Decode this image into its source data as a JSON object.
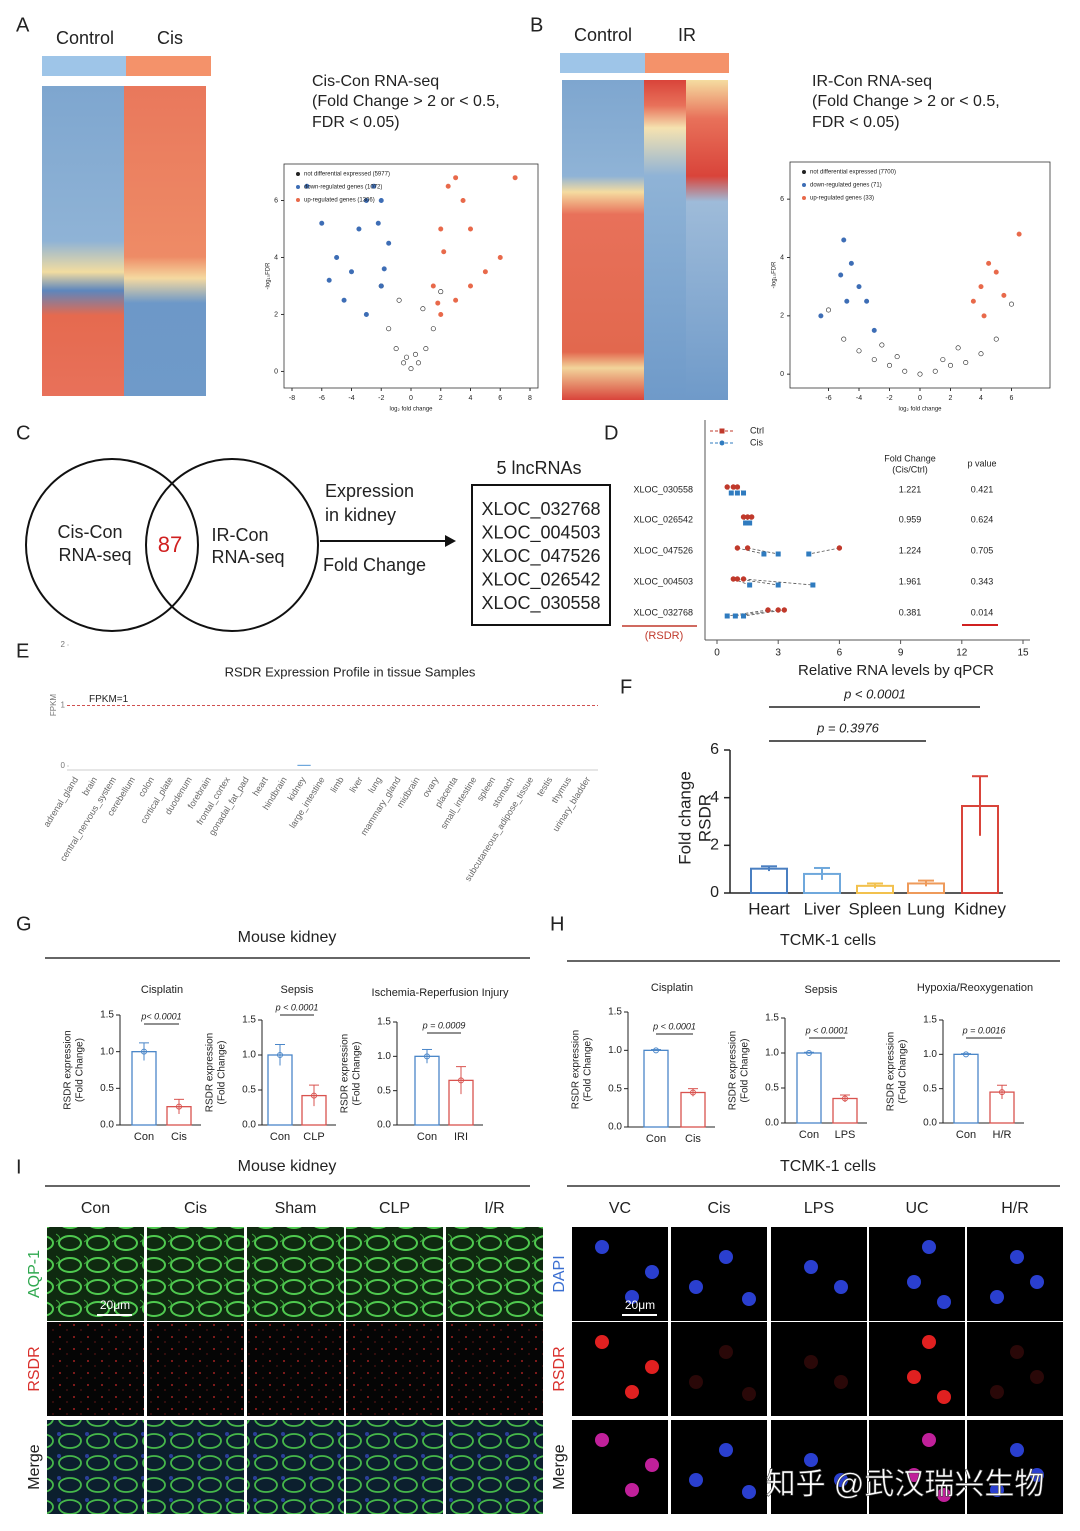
{
  "panel_labels": [
    "A",
    "B",
    "C",
    "D",
    "E",
    "F",
    "G",
    "H",
    "I"
  ],
  "A": {
    "groups": [
      "Control",
      "Cis"
    ],
    "title": "Cis-Con  RNA-seq",
    "criteria": [
      "(Fold Change > 2 or  < 0.5,",
      "FDR < 0.05)"
    ]
  },
  "B": {
    "groups": [
      "Control",
      "IR"
    ],
    "title": "IR-Con  RNA-seq",
    "criteria": [
      "(Fold Change > 2 or  < 0.5,",
      "FDR < 0.05)"
    ]
  },
  "C": {
    "left": [
      "Cis-Con",
      "RNA-seq"
    ],
    "overlap": "87",
    "right": [
      "IR-Con",
      "RNA-seq"
    ],
    "arrow_top": [
      "Expression",
      "in kidney"
    ],
    "arrow_bottom": "Fold Change",
    "box_title": "5 lncRNAs",
    "box_items": [
      "XLOC_032768",
      "XLOC_004503",
      "XLOC_047526",
      "XLOC_026542",
      "XLOC_030558"
    ]
  },
  "sections": {
    "G": "Mouse kidney",
    "H": "TCMK-1 cells"
  },
  "I": {
    "left": {
      "title": "Mouse kidney",
      "columns": [
        "Con",
        "Cis",
        "Sham",
        "CLP",
        "I/R"
      ],
      "rows": [
        "AQP-1",
        "RSDR",
        "Merge"
      ],
      "row_colors": [
        "#2fa84f",
        "#d9302c",
        "#222"
      ],
      "scale": "20μm"
    },
    "right": {
      "title": "TCMK-1 cells",
      "columns": [
        "VC",
        "Cis",
        "LPS",
        "UC",
        "H/R"
      ],
      "rows": [
        "DAPI",
        "RSDR",
        "Merge"
      ],
      "row_colors": [
        "#3b6fd1",
        "#d9302c",
        "#222"
      ],
      "scale": "20μm"
    }
  },
  "watermark": "知乎 @武汉瑞兴生物",
  "chart_data": [
    {
      "type": "scatter",
      "xlabel": "log₂ fold change",
      "ylabel": "-log₁₀FDR",
      "xlim": [
        -8,
        8
      ],
      "ylim": [
        -0.3,
        7
      ],
      "xticks": [
        -8,
        -6,
        -4,
        -2,
        0,
        2,
        4,
        6,
        8
      ],
      "yticks": [
        0,
        2,
        4,
        6
      ],
      "series": [
        {
          "name": "not differential expressed (5977)",
          "color": "#222222",
          "x": [
            -1.5,
            -1,
            -0.5,
            0,
            0.5,
            1,
            1.5,
            -0.8,
            0.8,
            -2,
            2,
            -0.3,
            0.3
          ],
          "y": [
            1.5,
            0.8,
            0.3,
            0.1,
            0.3,
            0.8,
            1.5,
            2.5,
            2.2,
            3,
            2.8,
            0.5,
            0.6
          ]
        },
        {
          "name": "down-regulated genes (1072)",
          "color": "#3d6db5",
          "x": [
            -7,
            -6,
            -5,
            -4,
            -3.5,
            -3,
            -2.5,
            -2,
            -1.5,
            -3,
            -2,
            -4.5,
            -5.5,
            -2.2,
            -1.8
          ],
          "y": [
            6.5,
            5.2,
            4,
            3.5,
            5,
            6,
            6.5,
            6,
            4.5,
            2,
            3,
            2.5,
            3.2,
            5.2,
            3.6
          ]
        },
        {
          "name": "up-regulated genes (1306)",
          "color": "#e8694a",
          "x": [
            1.5,
            2,
            2.5,
            3,
            3.5,
            4,
            5,
            6,
            7,
            2,
            3,
            4,
            2.2,
            1.8
          ],
          "y": [
            3,
            5,
            6.5,
            6.8,
            6,
            5,
            3.5,
            4,
            6.8,
            2,
            2.5,
            3,
            4.2,
            2.4
          ]
        }
      ]
    },
    {
      "type": "scatter",
      "xlabel": "log₂ fold change",
      "ylabel": "-log₁₀FDR",
      "xlim": [
        -8,
        8
      ],
      "ylim": [
        -0.2,
        7
      ],
      "xticks": [
        -6,
        -4,
        -2,
        0,
        2,
        4,
        6
      ],
      "yticks": [
        0,
        2,
        4,
        6
      ],
      "series": [
        {
          "name": "not differential expressed (7700)",
          "color": "#222222",
          "x": [
            -6,
            -5,
            -4,
            -3,
            -2,
            -1,
            0,
            1,
            2,
            3,
            4,
            5,
            6,
            -1.5,
            1.5,
            -2.5,
            2.5
          ],
          "y": [
            2.2,
            1.2,
            0.8,
            0.5,
            0.3,
            0.1,
            0,
            0.1,
            0.3,
            0.4,
            0.7,
            1.2,
            2.4,
            0.6,
            0.5,
            1,
            0.9
          ]
        },
        {
          "name": "down-regulated genes (71)",
          "color": "#3d6db5",
          "x": [
            -5,
            -4.5,
            -4,
            -3.5,
            -4.8,
            -5.2,
            -3,
            -6.5
          ],
          "y": [
            4.6,
            3.8,
            3,
            2.5,
            2.5,
            3.4,
            1.5,
            2
          ]
        },
        {
          "name": "up-regulated genes (33)",
          "color": "#e8694a",
          "x": [
            3.5,
            4,
            4.5,
            5,
            5.5,
            4.2,
            6.5
          ],
          "y": [
            2.5,
            3,
            3.8,
            3.5,
            2.7,
            2,
            4.8
          ]
        }
      ]
    },
    {
      "type": "dot",
      "header": [
        "Fold Change",
        "(Cis/Ctrl)"
      ],
      "p_header": "p value",
      "gene_label": "(RSDR)",
      "xlabel": "Relative RNA levels by qPCR",
      "xlim": [
        0,
        15
      ],
      "xticks": [
        0,
        3,
        6,
        9,
        12,
        15
      ],
      "rows": [
        "XLOC_030558",
        "XLOC_026542",
        "XLOC_047526",
        "XLOC_004503",
        "XLOC_032768"
      ],
      "fold_change": [
        1.221,
        0.959,
        1.224,
        1.961,
        0.381
      ],
      "p_value": [
        0.421,
        0.624,
        0.705,
        0.343,
        0.014
      ],
      "series": [
        {
          "name": "Ctrl",
          "color": "#c0392b",
          "values": [
            [
              0.5,
              0.8,
              1.0
            ],
            [
              1.3,
              1.5,
              1.7
            ],
            [
              1.0,
              1.5,
              6.0
            ],
            [
              0.8,
              1.0,
              1.3
            ],
            [
              2.5,
              3.0,
              3.3
            ]
          ]
        },
        {
          "name": "Cis",
          "color": "#2f7bbf",
          "values": [
            [
              0.7,
              1.0,
              1.3
            ],
            [
              1.4,
              1.5,
              1.6
            ],
            [
              2.3,
              3.0,
              4.5
            ],
            [
              1.6,
              3.0,
              4.7
            ],
            [
              0.5,
              0.9,
              1.3
            ]
          ]
        }
      ]
    },
    {
      "type": "bar",
      "title": "RSDR Expression Profile in tissue Samples",
      "ylabel": "FPKM",
      "threshold_label": "FPKM=1",
      "threshold": 1,
      "ylim": [
        0,
        2
      ],
      "yticks": [
        0,
        1,
        2
      ],
      "color": "#6fa8dc",
      "categories": [
        "adrenal_gland",
        "brain",
        "central_nervous_system",
        "cerebellum",
        "colon",
        "cortical_plate",
        "duodenum",
        "forebrain",
        "frontal_cortex",
        "gonadal_fat_pad",
        "heart",
        "hindbrain",
        "kidney",
        "large_intestine",
        "limb",
        "liver",
        "lung",
        "mammary_gland",
        "midbrain",
        "ovary",
        "placenta",
        "small_intestine",
        "spleen",
        "stomach",
        "subcutaneous_adipose_tissue",
        "testis",
        "thymus",
        "urinary_bladder"
      ],
      "values": [
        0,
        0,
        0,
        0,
        0,
        0,
        0,
        0,
        0,
        0,
        0,
        0,
        0.02,
        0,
        0,
        0,
        0,
        0,
        0,
        0,
        0,
        0,
        0,
        0,
        0,
        0,
        0,
        0
      ]
    },
    {
      "type": "bar",
      "ylabel": [
        "Fold change",
        "RSDR"
      ],
      "ylim": [
        0,
        6
      ],
      "yticks": [
        0,
        2,
        4,
        6
      ],
      "categories": [
        "Heart",
        "Liver",
        "Spleen",
        "Lung",
        "Kidney"
      ],
      "values": [
        1.02,
        0.8,
        0.3,
        0.4,
        3.65
      ],
      "errors": [
        0.1,
        0.25,
        0.1,
        0.12,
        1.25
      ],
      "colors": [
        "#4a7fc1",
        "#6fa8dc",
        "#f2c14e",
        "#ee9a5a",
        "#d9443a"
      ],
      "annotations": [
        "p < 0.0001",
        "p = 0.3976"
      ]
    },
    {
      "type": "bar",
      "title": "Cisplatin",
      "ylabel": [
        "RSDR expression",
        "(Fold Change)"
      ],
      "ylim": [
        0,
        1.5
      ],
      "yticks": [
        {
          "value": 0,
          "label": "0.0"
        },
        0.5,
        {
          "value": 1,
          "label": "1.0"
        },
        1.5
      ],
      "categories": [
        "Con",
        "Cis"
      ],
      "values": [
        1.0,
        0.25
      ],
      "errors": [
        0.12,
        0.1
      ],
      "colors": [
        "#4a86c8",
        "#d9534f"
      ],
      "annotation": "p< 0.0001"
    },
    {
      "type": "bar",
      "title": "Sepsis",
      "ylabel": [
        "RSDR expression",
        "(Fold Change)"
      ],
      "ylim": [
        0,
        1.5
      ],
      "yticks": [
        {
          "value": 0,
          "label": "0.0"
        },
        0.5,
        {
          "value": 1,
          "label": "1.0"
        },
        1.5
      ],
      "categories": [
        "Con",
        "CLP"
      ],
      "values": [
        1.0,
        0.42
      ],
      "errors": [
        0.15,
        0.15
      ],
      "colors": [
        "#4a86c8",
        "#d9534f"
      ],
      "annotation": "p < 0.0001"
    },
    {
      "type": "bar",
      "title": "Ischemia-Reperfusion Injury",
      "ylabel": [
        "RSDR expression",
        "(Fold Change)"
      ],
      "ylim": [
        0,
        1.5
      ],
      "yticks": [
        {
          "value": 0,
          "label": "0.0"
        },
        0.5,
        {
          "value": 1,
          "label": "1.0"
        },
        1.5
      ],
      "categories": [
        "Con",
        "IRI"
      ],
      "values": [
        1.0,
        0.65
      ],
      "errors": [
        0.1,
        0.2
      ],
      "colors": [
        "#4a86c8",
        "#d9534f"
      ],
      "annotation": "p = 0.0009"
    },
    {
      "type": "bar",
      "title": "Cisplatin",
      "ylabel": [
        "RSDR expression",
        "(Fold Change)"
      ],
      "ylim": [
        0,
        1.5
      ],
      "yticks": [
        {
          "value": 0,
          "label": "0.0"
        },
        0.5,
        {
          "value": 1,
          "label": "1.0"
        },
        1.5
      ],
      "categories": [
        "Con",
        "Cis"
      ],
      "values": [
        1.0,
        0.45
      ],
      "errors": [
        0.01,
        0.05
      ],
      "colors": [
        "#4a86c8",
        "#d9534f"
      ],
      "annotation": "p < 0.0001"
    },
    {
      "type": "bar",
      "title": "Sepsis",
      "ylabel": [
        "RSDR expression",
        "(Fold Change)"
      ],
      "ylim": [
        0,
        1.5
      ],
      "yticks": [
        {
          "value": 0,
          "label": "0.0"
        },
        0.5,
        {
          "value": 1,
          "label": "1.0"
        },
        1.5
      ],
      "categories": [
        "Con",
        "LPS"
      ],
      "values": [
        1.0,
        0.35
      ],
      "errors": [
        0.01,
        0.05
      ],
      "colors": [
        "#4a86c8",
        "#d9534f"
      ],
      "annotation": "p < 0.0001"
    },
    {
      "type": "bar",
      "title": "Hypoxia/Reoxygenation",
      "ylabel": [
        "RSDR expression",
        "(Fold Change)"
      ],
      "ylim": [
        0,
        1.5
      ],
      "yticks": [
        {
          "value": 0,
          "label": "0.0"
        },
        0.5,
        {
          "value": 1,
          "label": "1.0"
        },
        1.5
      ],
      "categories": [
        "Con",
        "H/R"
      ],
      "values": [
        1.0,
        0.45
      ],
      "errors": [
        0.01,
        0.1
      ],
      "colors": [
        "#4a86c8",
        "#d9534f"
      ],
      "annotation": "p = 0.0016"
    }
  ]
}
